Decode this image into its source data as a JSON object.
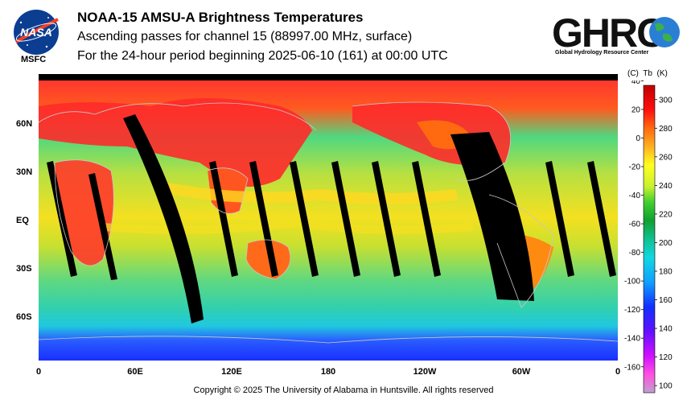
{
  "header": {
    "title": "NOAA-15 AMSU-A Brightness Temperatures",
    "subtitle_1": "Ascending passes for channel 15 (88997.00 MHz, surface)",
    "subtitle_2": "For the 24-hour period beginning 2025-06-10 (161) at 00:00 UTC"
  },
  "logos": {
    "nasa_text": "NASA",
    "nasa_label": "MSFC",
    "ghrc_text": "GHRC",
    "ghrc_subtitle": "Global Hydrology Resource Center"
  },
  "map": {
    "longitude_labels": [
      "0",
      "60E",
      "120E",
      "180",
      "120W",
      "60W",
      "0"
    ],
    "latitude_labels": [
      "60N",
      "30N",
      "EQ",
      "30S",
      "60S"
    ],
    "colors": {
      "polar": "#1a3cff",
      "cold_band": "#1fc2e6",
      "ocean": "#3fd0a8",
      "mid": "#8ee050",
      "warm": "#f0e020",
      "hot": "#ff8a10",
      "land": "#ff2a2a",
      "gap": "#000000",
      "coast": "#c8c8c8"
    }
  },
  "colorbar": {
    "header_c": "(C)",
    "header_tb": "Tb",
    "header_k": "(K)",
    "celsius_ticks": [
      "40",
      "20",
      "0",
      "-20",
      "-40",
      "-60",
      "-80",
      "-100",
      "-120",
      "-140",
      "-160"
    ],
    "kelvin_ticks": [
      "300",
      "280",
      "260",
      "240",
      "220",
      "200",
      "180",
      "160",
      "140",
      "120",
      "100"
    ],
    "kelvin_max": 310,
    "kelvin_min": 95
  },
  "footer": {
    "copyright": "Copyright © 2025 The University of Alabama in Huntsville.  All rights reserved"
  }
}
